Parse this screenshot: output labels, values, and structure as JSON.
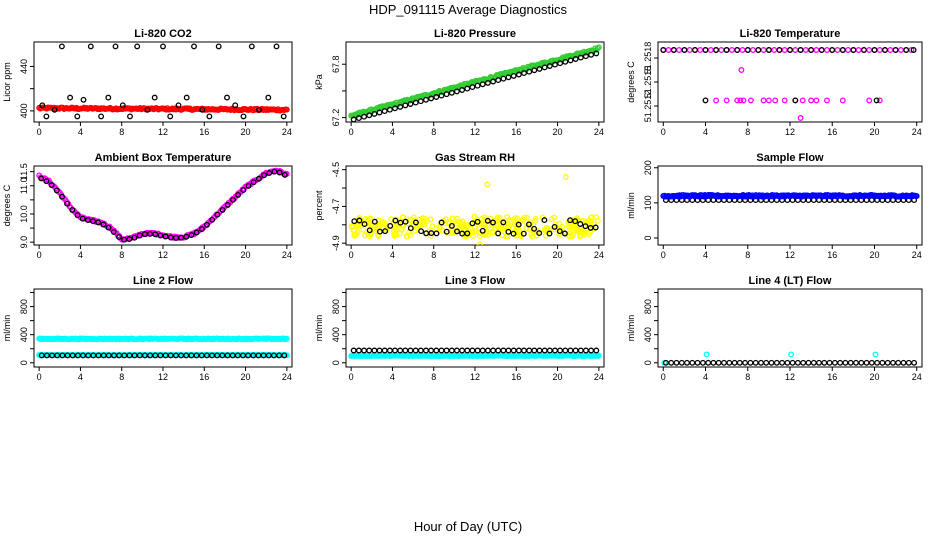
{
  "figure": {
    "title": "HDP_091115  Average Diagnostics",
    "xlabel": "Hour of Day (UTC)"
  },
  "chart_data": [
    {
      "type": "scatter",
      "title": "Li-820 CO2",
      "ylabel": "Licor ppm",
      "xlim": [
        -0.5,
        24.5
      ],
      "ylim": [
        390,
        462
      ],
      "xticks": [
        0,
        4,
        8,
        12,
        16,
        20,
        24
      ],
      "yticks": [
        400,
        420,
        440
      ],
      "ytick_labels": [
        "400",
        "",
        "440"
      ],
      "series": [
        {
          "name": "raw",
          "color": "#ff0000",
          "style": "dense",
          "y0": 402.5,
          "y1": 401.0,
          "noise": 0.8,
          "n": 200
        },
        {
          "name": "avg",
          "color": "#000000",
          "style": "ring",
          "x": [
            0.3,
            0.7,
            1.5,
            2.2,
            3.0,
            3.7,
            4.3,
            5.0,
            6.0,
            6.7,
            7.4,
            8.1,
            8.8,
            9.5,
            10.5,
            11.2,
            12.0,
            12.7,
            13.5,
            14.3,
            15.0,
            15.8,
            16.5,
            17.4,
            18.2,
            19.0,
            19.8,
            20.6,
            21.3,
            22.2,
            23.0,
            23.7
          ],
          "y": [
            405,
            395,
            401,
            458,
            412,
            395,
            410,
            458,
            395,
            412,
            458,
            405,
            395,
            458,
            401,
            412,
            458,
            395,
            405,
            412,
            458,
            401,
            395,
            458,
            412,
            405,
            395,
            458,
            401,
            412,
            458,
            395
          ]
        }
      ]
    },
    {
      "type": "scatter",
      "title": "Li-820 Pressure",
      "ylabel": "kPa",
      "xlim": [
        -0.5,
        24.5
      ],
      "ylim": [
        67.15,
        68.05
      ],
      "xticks": [
        0,
        4,
        8,
        12,
        16,
        20,
        24
      ],
      "yticks": [
        67.2,
        67.5,
        67.8
      ],
      "ytick_labels": [
        "67.2",
        "",
        "67.8"
      ],
      "series": [
        {
          "name": "raw",
          "color": "#32cd32",
          "style": "dense",
          "y0": 67.22,
          "y1": 67.98,
          "noise": 0.012,
          "n": 200
        },
        {
          "name": "avg",
          "color": "#000000",
          "style": "ringline",
          "y0": 67.17,
          "y1": 67.93,
          "n": 48
        }
      ]
    },
    {
      "type": "scatter",
      "title": "Li-820 Temperature",
      "ylabel": "degrees C",
      "xlim": [
        -0.5,
        24.5
      ],
      "ylim": [
        51.251,
        51.252
      ],
      "xticks": [
        0,
        4,
        8,
        12,
        16,
        20,
        24
      ],
      "yticks": [
        51.2512,
        51.2515,
        51.2518
      ],
      "ytick_labels": [
        "51.2512",
        "51.2515",
        "51.2518"
      ],
      "series": [
        {
          "name": "raw",
          "color": "#ff00ff",
          "style": "ring",
          "x": [
            0,
            0.5,
            1,
            1.5,
            2,
            2.5,
            3,
            3.5,
            4,
            4.5,
            5,
            5.5,
            6,
            6.5,
            7,
            7.5,
            8,
            8.5,
            9,
            9.5,
            10,
            10.5,
            11,
            11.5,
            12,
            12.5,
            13,
            13.5,
            14,
            14.5,
            15,
            15.5,
            16,
            16.5,
            17,
            17.5,
            18,
            18.5,
            19,
            19.5,
            20,
            20.5,
            21,
            21.5,
            22,
            22.5,
            23,
            23.5,
            5,
            6,
            7,
            7.3,
            7.6,
            8.3,
            9.5,
            10,
            10.6,
            11.5,
            12.5,
            13.2,
            14,
            14.5,
            15.5,
            17,
            19.5,
            20.5,
            7.4,
            13.0
          ],
          "y": [
            51.2519,
            51.2519,
            51.2519,
            51.2519,
            51.2519,
            51.2519,
            51.2519,
            51.2519,
            51.2519,
            51.2519,
            51.2519,
            51.2519,
            51.2519,
            51.2519,
            51.2519,
            51.2519,
            51.2519,
            51.2519,
            51.2519,
            51.2519,
            51.2519,
            51.2519,
            51.2519,
            51.2519,
            51.2519,
            51.2519,
            51.2519,
            51.2519,
            51.2519,
            51.2519,
            51.2519,
            51.2519,
            51.2519,
            51.2519,
            51.2519,
            51.2519,
            51.2519,
            51.2519,
            51.2519,
            51.2519,
            51.2519,
            51.2519,
            51.2519,
            51.2519,
            51.2519,
            51.2519,
            51.2519,
            51.2519,
            51.25127,
            51.25127,
            51.25127,
            51.25127,
            51.25127,
            51.25127,
            51.25127,
            51.25127,
            51.25127,
            51.25127,
            51.25127,
            51.25127,
            51.25127,
            51.25127,
            51.25127,
            51.25127,
            51.25127,
            51.25127,
            51.25165,
            51.25105
          ]
        },
        {
          "name": "avg",
          "color": "#000000",
          "style": "ring",
          "x": [
            0,
            1,
            2,
            3,
            4,
            5,
            6,
            7,
            8,
            9,
            10,
            11,
            12,
            13,
            14,
            15,
            16,
            17,
            18,
            19,
            20,
            21,
            22,
            23,
            23.7,
            4.0,
            12.5,
            20.2
          ],
          "y": [
            51.2519,
            51.2519,
            51.2519,
            51.2519,
            51.2519,
            51.2519,
            51.2519,
            51.2519,
            51.2519,
            51.2519,
            51.2519,
            51.2519,
            51.2519,
            51.2519,
            51.2519,
            51.2519,
            51.2519,
            51.2519,
            51.2519,
            51.2519,
            51.2519,
            51.2519,
            51.2519,
            51.2519,
            51.2519,
            51.25127,
            51.25127,
            51.25127
          ]
        }
      ]
    },
    {
      "type": "scatter",
      "title": "Ambient Box Temperature",
      "ylabel": "degrees C",
      "xlim": [
        -0.5,
        24.5
      ],
      "ylim": [
        8.9,
        11.7
      ],
      "xticks": [
        0,
        4,
        8,
        12,
        16,
        20,
        24
      ],
      "yticks": [
        9.0,
        9.5,
        10.0,
        10.5,
        11.0,
        11.5
      ],
      "ytick_labels": [
        "9.0",
        "",
        "10.0",
        "",
        "11.0",
        "11.5"
      ],
      "series": [
        {
          "name": "raw",
          "color": "#ff00ff",
          "style": "curve",
          "kx": [
            0,
            1,
            2,
            3,
            4,
            5,
            6,
            7,
            8,
            9,
            10,
            11,
            12,
            13,
            14,
            15,
            16,
            17,
            18,
            19,
            20,
            21,
            22,
            23,
            24
          ],
          "ky": [
            11.35,
            11.15,
            10.75,
            10.25,
            9.88,
            9.78,
            9.7,
            9.5,
            9.1,
            9.15,
            9.3,
            9.32,
            9.25,
            9.18,
            9.18,
            9.3,
            9.55,
            9.9,
            10.25,
            10.6,
            10.95,
            11.2,
            11.45,
            11.55,
            11.4
          ],
          "noise": 0.03,
          "n": 180
        },
        {
          "name": "avg",
          "color": "#000000",
          "style": "curvering",
          "kx": [
            0,
            1,
            2,
            3,
            4,
            5,
            6,
            7,
            8,
            9,
            10,
            11,
            12,
            13,
            14,
            15,
            16,
            17,
            18,
            19,
            20,
            21,
            22,
            23,
            24
          ],
          "ky": [
            11.3,
            11.1,
            10.72,
            10.22,
            9.85,
            9.76,
            9.68,
            9.45,
            9.08,
            9.12,
            9.28,
            9.3,
            9.22,
            9.15,
            9.16,
            9.28,
            9.52,
            9.88,
            10.22,
            10.58,
            10.92,
            11.18,
            11.42,
            11.52,
            11.35
          ],
          "n": 48
        }
      ]
    },
    {
      "type": "scatter",
      "title": "Gas Stream RH",
      "ylabel": "percent",
      "xlim": [
        -0.5,
        24.5
      ],
      "ylim": [
        -4.91,
        -4.48
      ],
      "xticks": [
        0,
        4,
        8,
        12,
        16,
        20,
        24
      ],
      "yticks": [
        -4.9,
        -4.8,
        -4.7,
        -4.6,
        -4.5
      ],
      "ytick_labels": [
        "-4.9",
        "",
        "-4.7",
        "",
        "-4.5"
      ],
      "series": [
        {
          "name": "raw",
          "color": "#ffff00",
          "style": "band",
          "ycenter": -4.81,
          "spread": 0.055,
          "n": 320,
          "outliers_x": [
            13.2,
            20.8,
            12.5
          ],
          "outliers_y": [
            -4.58,
            -4.54,
            -4.905
          ]
        },
        {
          "name": "avg",
          "color": "#000000",
          "style": "bandring",
          "ycenter": -4.81,
          "spread": 0.04,
          "n": 48
        }
      ]
    },
    {
      "type": "scatter",
      "title": "Sample Flow",
      "ylabel": "ml/min",
      "xlim": [
        -0.5,
        24.5
      ],
      "ylim": [
        -20,
        205
      ],
      "xticks": [
        0,
        4,
        8,
        12,
        16,
        20,
        24
      ],
      "yticks": [
        0,
        100,
        200
      ],
      "ytick_labels": [
        "0",
        "100",
        "200"
      ],
      "series": [
        {
          "name": "avg",
          "color": "#000000",
          "style": "ringline",
          "y0": 108,
          "y1": 108,
          "n": 48
        },
        {
          "name": "raw",
          "color": "#0000ff",
          "style": "dense",
          "y0": 120,
          "y1": 120,
          "noise": 2.5,
          "n": 220
        }
      ]
    },
    {
      "type": "scatter",
      "title": "Line 2 Flow",
      "ylabel": "ml/min",
      "xlim": [
        -0.5,
        24.5
      ],
      "ylim": [
        -60,
        1050
      ],
      "xticks": [
        0,
        4,
        8,
        12,
        16,
        20,
        24
      ],
      "yticks": [
        0,
        200,
        400,
        600,
        800,
        1000
      ],
      "ytick_labels": [
        "0",
        "",
        "400",
        "",
        "800",
        ""
      ],
      "series": [
        {
          "name": "raw",
          "color": "#00ffff",
          "style": "dense",
          "y0": 340,
          "y1": 340,
          "noise": 6,
          "n": 220
        },
        {
          "name": "raw-low",
          "color": "#00ffff",
          "style": "dense",
          "y0": 110,
          "y1": 110,
          "noise": 4,
          "n": 220
        },
        {
          "name": "avg",
          "color": "#000000",
          "style": "ringline",
          "y0": 105,
          "y1": 105,
          "n": 48
        }
      ]
    },
    {
      "type": "scatter",
      "title": "Line 3 Flow",
      "ylabel": "ml/min",
      "xlim": [
        -0.5,
        24.5
      ],
      "ylim": [
        -60,
        1050
      ],
      "xticks": [
        0,
        4,
        8,
        12,
        16,
        20,
        24
      ],
      "yticks": [
        0,
        200,
        400,
        600,
        800,
        1000
      ],
      "ytick_labels": [
        "0",
        "",
        "400",
        "",
        "800",
        ""
      ],
      "series": [
        {
          "name": "raw",
          "color": "#00ffff",
          "style": "dense",
          "y0": 100,
          "y1": 100,
          "noise": 5,
          "n": 220
        },
        {
          "name": "avg",
          "color": "#000000",
          "style": "ringline",
          "y0": 175,
          "y1": 175,
          "n": 48
        }
      ]
    },
    {
      "type": "scatter",
      "title": "Line 4 (LT) Flow",
      "ylabel": "ml/min",
      "xlim": [
        -0.5,
        24.5
      ],
      "ylim": [
        -60,
        1050
      ],
      "xticks": [
        0,
        4,
        8,
        12,
        16,
        20,
        24
      ],
      "yticks": [
        0,
        200,
        400,
        600,
        800,
        1000
      ],
      "ytick_labels": [
        "0",
        "",
        "400",
        "",
        "800",
        ""
      ],
      "series": [
        {
          "name": "raw",
          "color": "#00ffff",
          "style": "ring",
          "x": [
            0.1,
            4.1,
            12.1,
            20.1
          ],
          "y": [
            0,
            120,
            120,
            120
          ]
        },
        {
          "name": "avg",
          "color": "#000000",
          "style": "ringline",
          "y0": 0,
          "y1": 0,
          "n": 48
        }
      ]
    }
  ]
}
